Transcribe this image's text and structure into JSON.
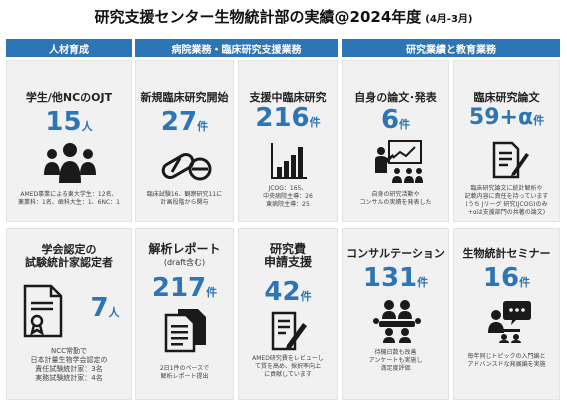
{
  "header": {
    "title": "研究支援センター生物統計部の実績@2024年度",
    "period": "(4月-3月)"
  },
  "categories": [
    {
      "label": "人材育成"
    },
    {
      "label": "病院業務・臨床研究支援業務"
    },
    {
      "label": "研究業績と教育業務"
    }
  ],
  "cards": {
    "ojt": {
      "title": "学生/他NCのOJT",
      "value": "15",
      "unit": "人",
      "desc_1": "AMED事業による東大学生：12名、",
      "desc_2": "薬業科：1名、歯科大生：1、6NC：1",
      "icon": "group-people-icon"
    },
    "new_trials": {
      "title": "新規臨床研究開始",
      "value": "27",
      "unit": "件",
      "desc_1": "臨床試験16、観察研究11に",
      "desc_2": "計画段階から関与",
      "icon": "pills-icon"
    },
    "supporting": {
      "title": "支援中臨床研究",
      "value": "216",
      "unit": "件",
      "desc_1": "JCOG：165、",
      "desc_2": "中央病院主導：26",
      "desc_3": "東病院主導：25",
      "icon": "bar-chart-icon"
    },
    "papers": {
      "title": "自身の論文･発表",
      "value": "6",
      "unit": "件",
      "desc_1": "自身の研究活動や",
      "desc_2": "コンサルの実績を発表した",
      "icon": "presenter-icon"
    },
    "clinical_papers": {
      "title": "臨床研究論文",
      "value": "59+α",
      "unit": "件",
      "desc_1": "臨床研究論文に統計解析や",
      "desc_2": "記載内容に責任を持っています",
      "desc_3": "(うち Jリーグ 研究(JCOG)のみ",
      "desc_4": "+αは支援部門の共著の論文)",
      "icon": "document-pen-icon"
    },
    "certification": {
      "title_1": "学会認定の",
      "title_2": "試験統計家認定者",
      "value": "7",
      "unit": "人",
      "desc_1": "NCC常勤で",
      "desc_2": "日本計量生物学会認定の",
      "desc_3": "責任試験統計家：3名",
      "desc_4": "実務試験統計家：4名",
      "icon": "certificate-icon"
    },
    "analysis": {
      "title_1": "解析レポート",
      "title_2": "(draft含む)",
      "value": "217",
      "unit": "件",
      "desc_1": "2日1件のペースで",
      "desc_2": "解析レポート提出",
      "icon": "report-documents-icon"
    },
    "grants": {
      "title_1": "研究費",
      "title_2": "申請支援",
      "value": "42",
      "unit": "件",
      "desc_1": "AMED研究費をレビューし",
      "desc_2": "て質を高め、採択率向上",
      "desc_3": "に貢献しています",
      "icon": "form-pencil-icon"
    },
    "consultation": {
      "title": "コンサルテーション",
      "value": "131",
      "unit": "件",
      "desc_1": "待機日数も改善",
      "desc_2": "アンケートも実施し",
      "desc_3": "満足度評価",
      "icon": "meeting-icon"
    },
    "seminar": {
      "title": "生物統計セミナー",
      "value": "16",
      "unit": "件",
      "desc_1": "毎年同じトピックの入門編と",
      "desc_2": "アドバンスドな発展編を実施",
      "icon": "speaker-chat-icon"
    }
  },
  "colors": {
    "accent": "#2e75b6",
    "card_bg": "#f1f1f1",
    "icon": "#1a1a1a"
  }
}
